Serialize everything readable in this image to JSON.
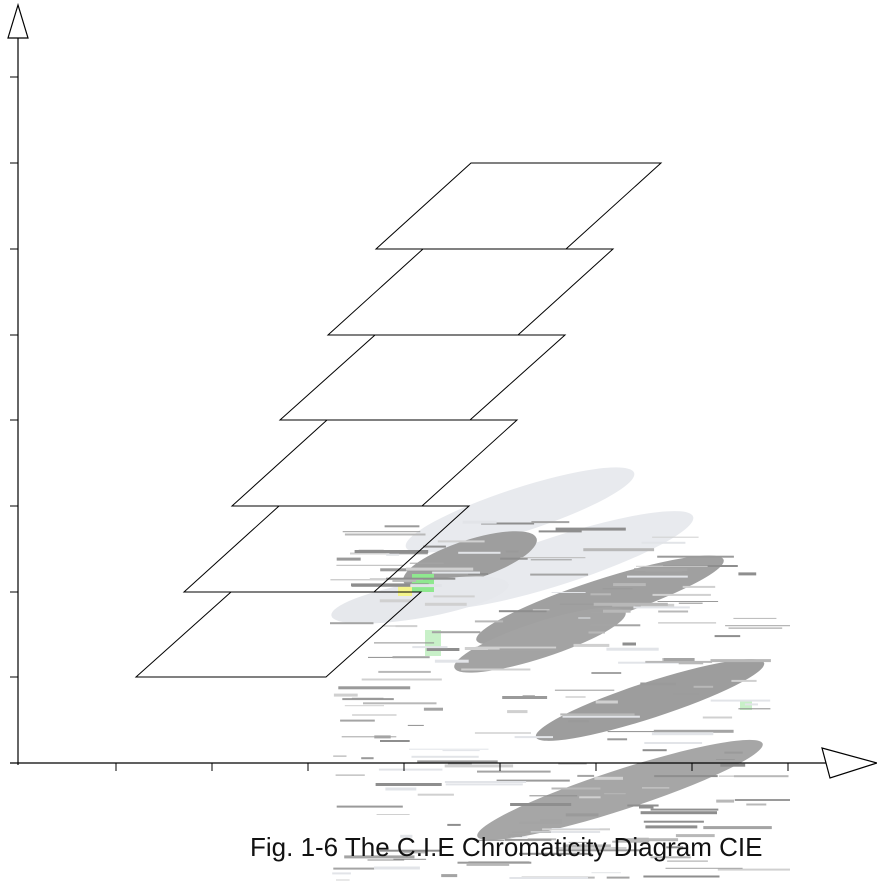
{
  "figure": {
    "caption": "Fig. 1-6 The C.I.E Chromaticity Diagram CIE",
    "colors": {
      "line": "#000000",
      "smear_gray": "#9a9a9a",
      "smear_light": "#e3e6ea",
      "highlight_green": "#8fe88f",
      "highlight_yellow": "#f4f48a"
    },
    "y_axis_ticks": 8,
    "x_axis_ticks": 8,
    "layers": 6
  }
}
